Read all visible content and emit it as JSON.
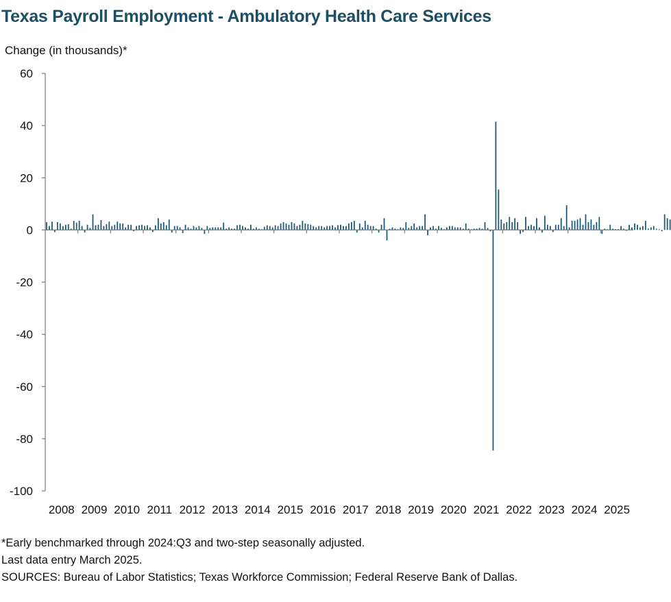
{
  "chart_data": {
    "type": "bar",
    "title": "Texas Payroll Employment - Ambulatory Health Care Services",
    "ylabel": "Change (in thousands)*",
    "xlabel": "",
    "ylim": [
      -100,
      60
    ],
    "yticks": [
      60,
      40,
      20,
      0,
      -20,
      -40,
      -60,
      -80,
      -100
    ],
    "year_labels": [
      "2008",
      "2009",
      "2010",
      "2011",
      "2012",
      "2013",
      "2014",
      "2015",
      "2016",
      "2017",
      "2018",
      "2019",
      "2020",
      "2021",
      "2022",
      "2023",
      "2024",
      "2025"
    ],
    "x_start": "2008-01",
    "bar_color": "#1d5a73",
    "grid": false,
    "series": [
      {
        "values": [
          3.0,
          1.5,
          3.2,
          -0.8,
          3.0,
          2.5,
          1.5,
          2.0,
          2.2,
          0.5,
          3.5,
          2.8,
          3.5,
          1.5,
          -1.0,
          2.0,
          0.8,
          6.0,
          1.8,
          2.0,
          3.8,
          1.5,
          2.2,
          3.2,
          1.5,
          2.0,
          3.2,
          2.5,
          2.5,
          1.0,
          2.0,
          2.0,
          -0.5,
          1.5,
          1.8,
          2.0,
          1.5,
          1.8,
          1.0,
          -0.8,
          1.8,
          4.5,
          2.5,
          3.0,
          1.8,
          4.0,
          -1.0,
          1.5,
          1.5,
          1.0,
          -1.2,
          2.0,
          1.0,
          0.5,
          1.5,
          1.0,
          1.5,
          0.8,
          -1.5,
          1.5,
          0.8,
          1.0,
          1.0,
          1.0,
          1.0,
          2.8,
          0.5,
          1.0,
          0.5,
          0.5,
          1.8,
          2.0,
          1.5,
          1.0,
          0.5,
          2.0,
          0.5,
          1.0,
          0.5,
          0.3,
          1.2,
          1.8,
          1.5,
          1.0,
          1.8,
          1.5,
          2.5,
          3.0,
          2.5,
          2.0,
          3.0,
          2.5,
          1.5,
          2.0,
          3.5,
          2.5,
          2.2,
          2.0,
          1.5,
          1.0,
          1.5,
          1.5,
          1.0,
          1.5,
          1.5,
          1.8,
          1.0,
          1.8,
          2.0,
          1.5,
          1.5,
          2.5,
          3.0,
          3.5,
          -1.0,
          2.5,
          1.0,
          3.5,
          2.0,
          1.5,
          1.5,
          0.5,
          -1.0,
          2.0,
          4.5,
          -4.0,
          0.5,
          1.0,
          0.5,
          0.3,
          1.0,
          0.8,
          3.0,
          0.8,
          1.5,
          2.5,
          1.0,
          1.5,
          1.5,
          6.0,
          -2.0,
          1.0,
          1.5,
          0.5,
          1.5,
          0.8,
          0.3,
          1.0,
          1.5,
          1.5,
          1.0,
          1.0,
          1.0,
          0.5,
          2.5,
          0.5,
          0.3,
          0.5,
          0.5,
          0.8,
          0.5,
          3.0,
          0.8,
          -0.5,
          -84.5,
          41.5,
          15.5,
          4.0,
          2.5,
          3.0,
          5.0,
          3.0,
          4.5,
          3.0,
          -1.5,
          -0.8,
          5.0,
          1.5,
          2.0,
          1.5,
          4.5,
          1.0,
          -1.0,
          5.5,
          2.0,
          1.5,
          -0.8,
          2.0,
          2.0,
          4.5,
          1.5,
          9.5,
          1.0,
          3.5,
          3.5,
          4.0,
          4.5,
          2.0,
          6.0,
          3.0,
          4.0,
          2.0,
          3.0,
          5.0,
          -1.5,
          0.5,
          0.3,
          2.0,
          0.5,
          0.3,
          0.3,
          1.5,
          0.5,
          -0.3,
          2.0,
          1.0,
          2.5,
          2.0,
          1.0,
          1.5,
          3.5,
          0.5,
          1.0,
          1.5,
          0.5,
          0.3,
          -0.5,
          6.0,
          4.5,
          4.0
        ]
      }
    ]
  },
  "notes": [
    "*Early benchmarked through 2024:Q3 and two-step seasonally adjusted.",
    "Last data entry March 2025.",
    "SOURCES: Bureau of Labor Statistics; Texas Workforce Commission; Federal Reserve Bank of Dallas."
  ]
}
